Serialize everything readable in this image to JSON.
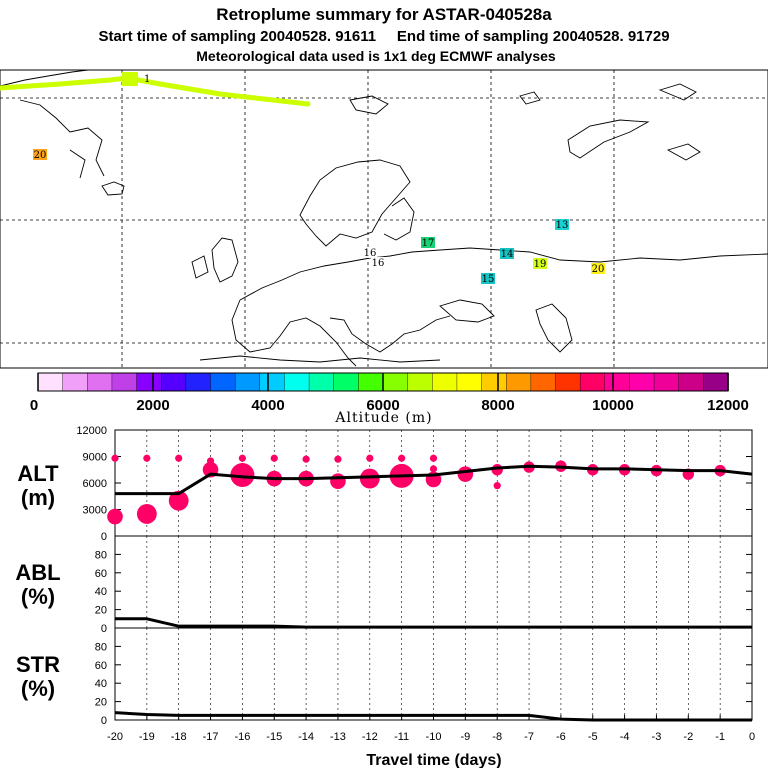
{
  "header": {
    "title": "Retroplume summary for ASTAR-040528a",
    "sampling_line": "Start time of sampling 20040528. 91611     End time of sampling 20040528. 91729",
    "meteo_line": "Meteorological data used is 1x1 deg ECMWF analyses"
  },
  "map": {
    "plume_color": "#ccff00",
    "plume_start_label": "1",
    "day_labels": [
      {
        "text": "20",
        "color": "#ff9900"
      },
      {
        "text": "13",
        "color": "#00cccc"
      },
      {
        "text": "17",
        "color": "#00cc66"
      },
      {
        "text": "16",
        "color": "#ffffff"
      },
      {
        "text": "16",
        "color": "#ffffff"
      },
      {
        "text": "14",
        "color": "#00bbbb"
      },
      {
        "text": "19",
        "color": "#ccff00"
      },
      {
        "text": "20",
        "color": "#ffee00"
      },
      {
        "text": "15",
        "color": "#00bbbb"
      }
    ]
  },
  "colorbar": {
    "colors": [
      "#ffe0ff",
      "#f0a0f8",
      "#e070f0",
      "#c040e8",
      "#8800ff",
      "#5500ff",
      "#2222ff",
      "#0066ff",
      "#0099ff",
      "#00ccff",
      "#00ffee",
      "#00ffaa",
      "#00ff66",
      "#44ff00",
      "#88ff00",
      "#bbff00",
      "#eeff00",
      "#ffff00",
      "#ffcc00",
      "#ff9900",
      "#ff6600",
      "#ff3300",
      "#ff0066",
      "#ff0099",
      "#ff00aa",
      "#ee0099",
      "#cc0088",
      "#990088"
    ],
    "tick_labels": [
      "0",
      "2000",
      "4000",
      "6000",
      "8000",
      "10000",
      "12000"
    ],
    "xlabel": "Altitude (m)"
  },
  "chart_data": [
    {
      "type": "line",
      "panel": "ALT",
      "ylabel": "ALT\n(m)",
      "ylabel_line1": "ALT",
      "ylabel_line2": "(m)",
      "ylim": [
        0,
        12000
      ],
      "yticks": [
        0,
        3000,
        6000,
        9000,
        12000
      ],
      "ytick_labels": [
        "0",
        "3000",
        "6000",
        "9000",
        "12000"
      ],
      "x": [
        -20,
        -19,
        -18,
        -17,
        -16,
        -15,
        -14,
        -13,
        -12,
        -11,
        -10,
        -9,
        -8,
        -7,
        -6,
        -5,
        -4,
        -3,
        -2,
        -1,
        0
      ],
      "series": [
        {
          "name": "mean altitude",
          "values": [
            4800,
            4800,
            4800,
            7000,
            6700,
            6500,
            6500,
            6600,
            6700,
            6800,
            6900,
            7300,
            7700,
            7900,
            7800,
            7600,
            7600,
            7500,
            7400,
            7400,
            7000
          ]
        }
      ],
      "dots": {
        "color": "#ff0066",
        "points": [
          {
            "x": -20,
            "y": 2200,
            "size": 3
          },
          {
            "x": -19,
            "y": 2500,
            "size": 4
          },
          {
            "x": -18,
            "y": 4000,
            "size": 4
          },
          {
            "x": -17,
            "y": 7500,
            "size": 3
          },
          {
            "x": -16,
            "y": 6900,
            "size": 5
          },
          {
            "x": -15,
            "y": 6500,
            "size": 3
          },
          {
            "x": -14,
            "y": 6500,
            "size": 3
          },
          {
            "x": -13,
            "y": 6200,
            "size": 3
          },
          {
            "x": -12,
            "y": 6500,
            "size": 4
          },
          {
            "x": -11,
            "y": 6800,
            "size": 5
          },
          {
            "x": -10,
            "y": 6400,
            "size": 3
          },
          {
            "x": -9,
            "y": 7000,
            "size": 3
          },
          {
            "x": -8,
            "y": 7500,
            "size": 2
          },
          {
            "x": -7,
            "y": 7800,
            "size": 2
          },
          {
            "x": -6,
            "y": 7900,
            "size": 2
          },
          {
            "x": -5,
            "y": 7500,
            "size": 2
          },
          {
            "x": -4,
            "y": 7500,
            "size": 2
          },
          {
            "x": -3,
            "y": 7400,
            "size": 2
          },
          {
            "x": -2,
            "y": 7000,
            "size": 2
          },
          {
            "x": -1,
            "y": 7400,
            "size": 2
          },
          {
            "x": -20,
            "y": 8800,
            "size": 1
          },
          {
            "x": -19,
            "y": 8800,
            "size": 1
          },
          {
            "x": -18,
            "y": 8800,
            "size": 1
          },
          {
            "x": -17,
            "y": 8500,
            "size": 1
          },
          {
            "x": -16,
            "y": 8800,
            "size": 1
          },
          {
            "x": -15,
            "y": 8800,
            "size": 1
          },
          {
            "x": -14,
            "y": 8700,
            "size": 1
          },
          {
            "x": -13,
            "y": 8700,
            "size": 1
          },
          {
            "x": -12,
            "y": 8800,
            "size": 1
          },
          {
            "x": -11,
            "y": 8800,
            "size": 1
          },
          {
            "x": -10,
            "y": 8800,
            "size": 1
          },
          {
            "x": -10,
            "y": 7600,
            "size": 1
          },
          {
            "x": -8,
            "y": 5700,
            "size": 1
          }
        ]
      }
    },
    {
      "type": "line",
      "panel": "ABL",
      "ylabel_line1": "ABL",
      "ylabel_line2": "(%)",
      "ylim": [
        0,
        100
      ],
      "yticks": [
        0,
        20,
        40,
        60,
        80
      ],
      "ytick_labels": [
        "0",
        "20",
        "40",
        "60",
        "80"
      ],
      "x": [
        -20,
        -19,
        -18,
        -17,
        -16,
        -15,
        -14,
        -13,
        -12,
        -11,
        -10,
        -9,
        -8,
        -7,
        -6,
        -5,
        -4,
        -3,
        -2,
        -1,
        0
      ],
      "series": [
        {
          "name": "ABL fraction",
          "values": [
            10,
            10,
            2,
            2,
            2,
            2,
            1,
            1,
            1,
            1,
            1,
            1,
            1,
            1,
            1,
            1,
            1,
            1,
            1,
            1,
            1
          ]
        }
      ]
    },
    {
      "type": "line",
      "panel": "STR",
      "ylabel_line1": "STR",
      "ylabel_line2": "(%)",
      "ylim": [
        0,
        100
      ],
      "yticks": [
        0,
        20,
        40,
        60,
        80
      ],
      "ytick_labels": [
        "0",
        "20",
        "40",
        "60",
        "80"
      ],
      "x": [
        -20,
        -19,
        -18,
        -17,
        -16,
        -15,
        -14,
        -13,
        -12,
        -11,
        -10,
        -9,
        -8,
        -7,
        -6,
        -5,
        -4,
        -3,
        -2,
        -1,
        0
      ],
      "series": [
        {
          "name": "stratospheric fraction",
          "values": [
            8,
            6,
            5,
            5,
            5,
            5,
            5,
            5,
            5,
            5,
            5,
            5,
            5,
            5,
            1,
            0,
            0,
            0,
            0,
            0,
            0
          ]
        }
      ],
      "xticks": [
        -20,
        -19,
        -18,
        -17,
        -16,
        -15,
        -14,
        -13,
        -12,
        -11,
        -10,
        -9,
        -8,
        -7,
        -6,
        -5,
        -4,
        -3,
        -2,
        -1,
        0
      ],
      "xtick_labels": [
        "-20",
        "-19",
        "-18",
        "-17",
        "-16",
        "-15",
        "-14",
        "-13",
        "-12",
        "-11",
        "-10",
        "-9",
        "-8",
        "-7",
        "-6",
        "-5",
        "-4",
        "-3",
        "-2",
        "-1",
        "0"
      ],
      "xlabel": "Travel time (days)"
    }
  ]
}
